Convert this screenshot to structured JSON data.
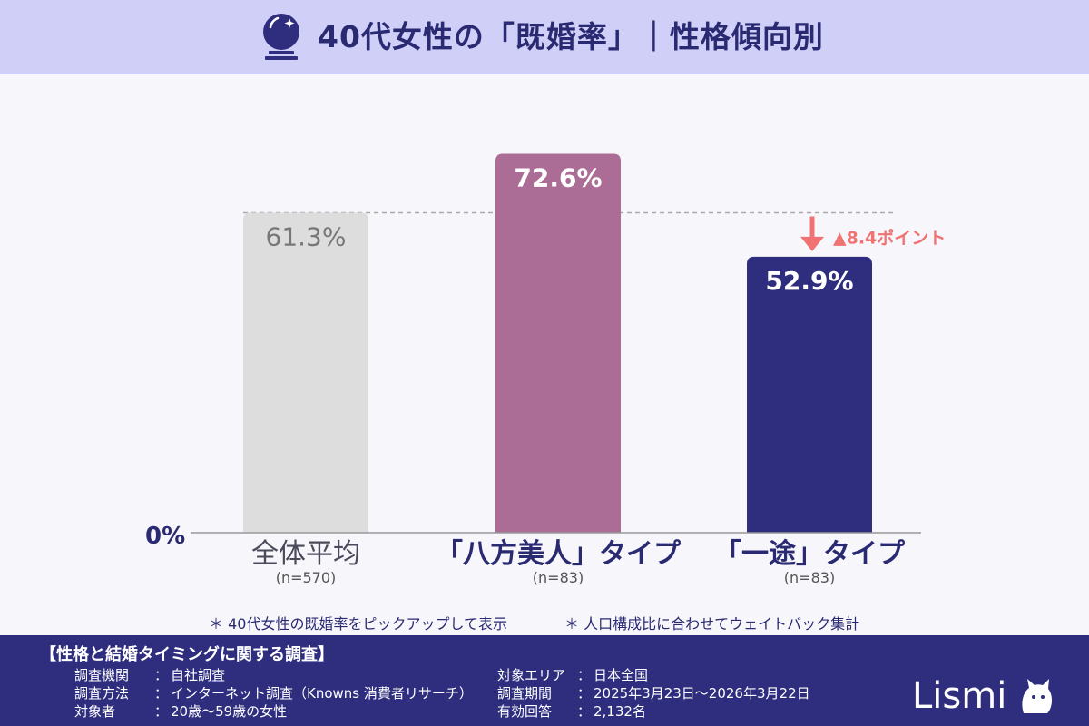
{
  "title": "40代女性の「既婚率」｜性格傾向別",
  "chart_data": {
    "type": "bar",
    "categories": [
      "全体平均",
      "「八方美人」タイプ",
      "「一途」タイプ"
    ],
    "sample_sizes": [
      "(n=570)",
      "(n=83)",
      "(n=83)"
    ],
    "values": [
      61.3,
      72.6,
      52.9
    ],
    "value_labels": [
      "61.3%",
      "72.6%",
      "52.9%"
    ],
    "ylim": [
      0,
      80
    ],
    "y_tick_label": "0%",
    "bar_colors": [
      "#dddddd",
      "#ab6d95",
      "#2e2d7e"
    ],
    "reference_line_value": 61.3,
    "annotation": "▲8.4ポイント",
    "annotation_color": "#f07272",
    "grid": false,
    "legend": "none"
  },
  "notes": [
    "＊ 40代女性の既婚率をピックアップして表示",
    "＊ 人口構成比に合わせてウェイトバック集計"
  ],
  "survey": {
    "title": "【性格と結婚タイミングに関する調査】",
    "left": [
      {
        "label": "調査機関",
        "value": "自社調査"
      },
      {
        "label": "調査方法",
        "value": "インターネット調査（Knowns 消費者リサーチ）"
      },
      {
        "label": "対象者",
        "value": "20歳～59歳の女性"
      }
    ],
    "right": [
      {
        "label": "対象エリア",
        "value": "日本全国"
      },
      {
        "label": "調査期間",
        "value": "2025年3月23日～2026年3月22日"
      },
      {
        "label": "有効回答",
        "value": "2,132名"
      }
    ]
  },
  "logo": "Lismi",
  "icons": {
    "title_icon": "crystal-ball-icon",
    "logo_icon": "cat-icon"
  }
}
